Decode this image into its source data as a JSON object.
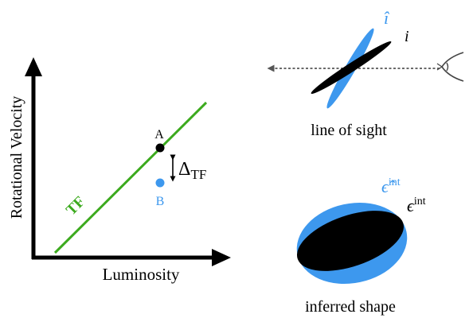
{
  "tully_fisher_panel": {
    "ylabel": "Rotational Velocity",
    "xlabel": "Luminosity",
    "relation_label": "TF",
    "point_a_label": "A",
    "point_b_label": "B",
    "offset_label": "Δ",
    "offset_subscript": "TF"
  },
  "line_of_sight_panel": {
    "hat_i_label": "î",
    "i_label": "i",
    "caption": "line of sight",
    "eye_icon": "eye-icon"
  },
  "inferred_shape_panel": {
    "hat_eps_label": "ϵ̂",
    "hat_eps_superscript": "int",
    "eps_label": "ϵ",
    "eps_superscript": "int",
    "caption": "inferred shape"
  },
  "colors": {
    "green": "#3caa1e",
    "blue": "#3d98ee",
    "black": "#000000",
    "arrow_gray": "#444444"
  }
}
